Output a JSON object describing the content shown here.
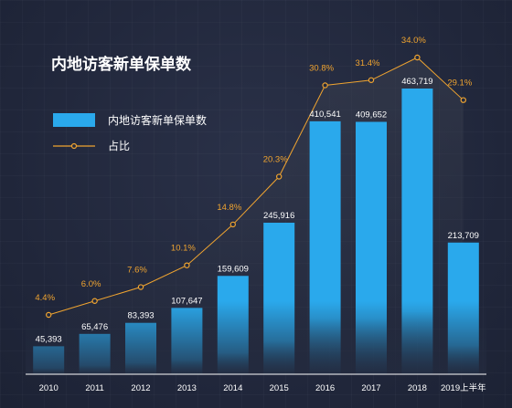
{
  "chart_data": {
    "type": "bar",
    "title": "内地访客新单保单数",
    "categories": [
      "2010",
      "2011",
      "2012",
      "2013",
      "2014",
      "2015",
      "2016",
      "2017",
      "2018",
      "2019上半年"
    ],
    "series": [
      {
        "name": "内地访客新单保单数",
        "type": "bar",
        "values": [
          45393,
          65476,
          83393,
          107647,
          159609,
          245916,
          410541,
          409652,
          463719,
          213709
        ],
        "labels": [
          "45,393",
          "65,476",
          "83,393",
          "107,647",
          "159,609",
          "245,916",
          "410,541",
          "409,652",
          "463,719",
          "213,709"
        ],
        "color": "#2aa9ec"
      },
      {
        "name": "占比",
        "type": "line",
        "values": [
          4.4,
          6.0,
          7.6,
          10.1,
          14.8,
          20.3,
          30.8,
          31.4,
          34.0,
          29.1
        ],
        "labels": [
          "4.4%",
          "6.0%",
          "7.6%",
          "10.1%",
          "14.8%",
          "20.3%",
          "30.8%",
          "31.4%",
          "34.0%",
          "29.1%"
        ],
        "unit": "%",
        "color": "#f0a430"
      }
    ],
    "legend": "top-left",
    "grid": false,
    "background": "#232a3e"
  }
}
